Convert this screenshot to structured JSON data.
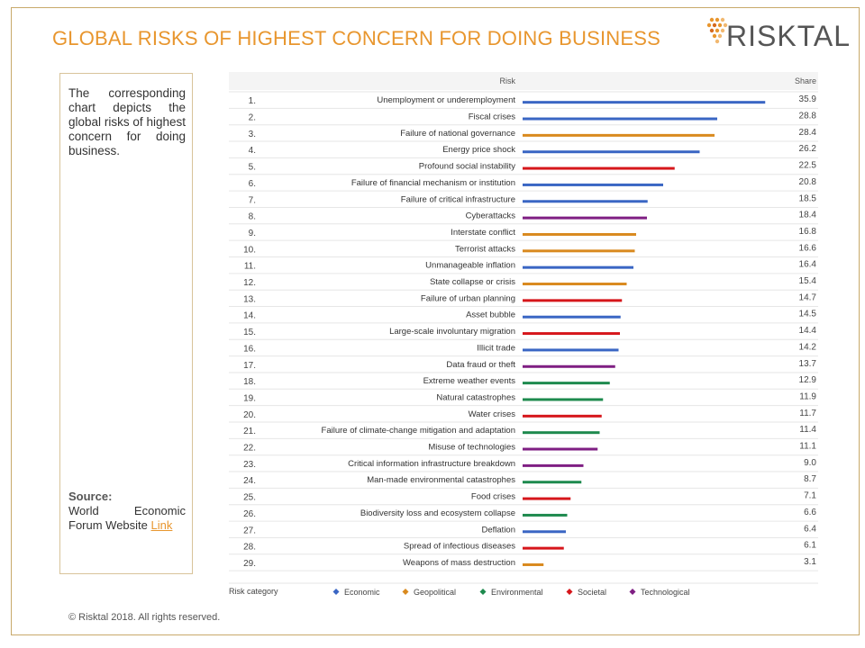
{
  "title": "GLOBAL RISKS OF HIGHEST CONCERN FOR DOING BUSINESS",
  "logo": {
    "text": "RISKTAL"
  },
  "sidebar": {
    "description": "The corresponding chart depicts the global risks of highest concern for doing business.",
    "source_label": "Source:",
    "source_text": "World Economic Forum Website",
    "link_text": "Link"
  },
  "footer": "© Risktal 2018. All rights reserved.",
  "colors": {
    "Economic": "#3a66c4",
    "Geopolitical": "#d98a1f",
    "Environmental": "#1e8a4e",
    "Societal": "#d6161b",
    "Technological": "#7f1f83"
  },
  "chart_data": {
    "type": "bar",
    "orientation": "horizontal",
    "column_headers": {
      "risk": "Risk",
      "share": "Share"
    },
    "legend_title": "Risk category",
    "legend": [
      "Economic",
      "Geopolitical",
      "Environmental",
      "Societal",
      "Technological"
    ],
    "legend_placement": "bottom",
    "xlim": [
      0,
      40
    ],
    "rows": [
      {
        "rank": "1.",
        "risk": "Unemployment or underemployment",
        "value": 35.9,
        "label": "35.9",
        "category": "Economic"
      },
      {
        "rank": "2.",
        "risk": "Fiscal crises",
        "value": 28.8,
        "label": "28.8",
        "category": "Economic"
      },
      {
        "rank": "3.",
        "risk": "Failure of national governance",
        "value": 28.4,
        "label": "28.4",
        "category": "Geopolitical"
      },
      {
        "rank": "4.",
        "risk": "Energy price shock",
        "value": 26.2,
        "label": "26.2",
        "category": "Economic"
      },
      {
        "rank": "5.",
        "risk": "Profound social instability",
        "value": 22.5,
        "label": "22.5",
        "category": "Societal"
      },
      {
        "rank": "6.",
        "risk": "Failure of financial mechanism or institution",
        "value": 20.8,
        "label": "20.8",
        "category": "Economic"
      },
      {
        "rank": "7.",
        "risk": "Failure of critical infrastructure",
        "value": 18.5,
        "label": "18.5",
        "category": "Economic"
      },
      {
        "rank": "8.",
        "risk": "Cyberattacks",
        "value": 18.4,
        "label": "18.4",
        "category": "Technological"
      },
      {
        "rank": "9.",
        "risk": "Interstate conflict",
        "value": 16.8,
        "label": "16.8",
        "category": "Geopolitical"
      },
      {
        "rank": "10.",
        "risk": "Terrorist attacks",
        "value": 16.6,
        "label": "16.6",
        "category": "Geopolitical"
      },
      {
        "rank": "11.",
        "risk": "Unmanageable inflation",
        "value": 16.4,
        "label": "16.4",
        "category": "Economic"
      },
      {
        "rank": "12.",
        "risk": "State collapse or crisis",
        "value": 15.4,
        "label": "15.4",
        "category": "Geopolitical"
      },
      {
        "rank": "13.",
        "risk": "Failure of urban planning",
        "value": 14.7,
        "label": "14.7",
        "category": "Societal"
      },
      {
        "rank": "14.",
        "risk": "Asset bubble",
        "value": 14.5,
        "label": "14.5",
        "category": "Economic"
      },
      {
        "rank": "15.",
        "risk": "Large-scale involuntary migration",
        "value": 14.4,
        "label": "14.4",
        "category": "Societal"
      },
      {
        "rank": "16.",
        "risk": "Illicit trade",
        "value": 14.2,
        "label": "14.2",
        "category": "Economic"
      },
      {
        "rank": "17.",
        "risk": "Data fraud or theft",
        "value": 13.7,
        "label": "13.7",
        "category": "Technological"
      },
      {
        "rank": "18.",
        "risk": "Extreme weather events",
        "value": 12.9,
        "label": "12.9",
        "category": "Environmental"
      },
      {
        "rank": "19.",
        "risk": "Natural catastrophes",
        "value": 11.9,
        "label": "11.9",
        "category": "Environmental"
      },
      {
        "rank": "20.",
        "risk": "Water crises",
        "value": 11.7,
        "label": "11.7",
        "category": "Societal"
      },
      {
        "rank": "21.",
        "risk": "Failure of climate-change mitigation and adaptation",
        "value": 11.4,
        "label": "11.4",
        "category": "Environmental"
      },
      {
        "rank": "22.",
        "risk": "Misuse of technologies",
        "value": 11.1,
        "label": "11.1",
        "category": "Technological"
      },
      {
        "rank": "23.",
        "risk": "Critical information infrastructure breakdown",
        "value": 9.0,
        "label": "9.0",
        "category": "Technological"
      },
      {
        "rank": "24.",
        "risk": "Man-made environmental catastrophes",
        "value": 8.7,
        "label": "8.7",
        "category": "Environmental"
      },
      {
        "rank": "25.",
        "risk": "Food crises",
        "value": 7.1,
        "label": "7.1",
        "category": "Societal"
      },
      {
        "rank": "26.",
        "risk": "Biodiversity loss and ecosystem collapse",
        "value": 6.6,
        "label": "6.6",
        "category": "Environmental"
      },
      {
        "rank": "27.",
        "risk": "Deflation",
        "value": 6.4,
        "label": "6.4",
        "category": "Economic"
      },
      {
        "rank": "28.",
        "risk": "Spread of infectious diseases",
        "value": 6.1,
        "label": "6.1",
        "category": "Societal"
      },
      {
        "rank": "29.",
        "risk": "Weapons of mass destruction",
        "value": 3.1,
        "label": "3.1",
        "category": "Geopolitical"
      }
    ]
  }
}
